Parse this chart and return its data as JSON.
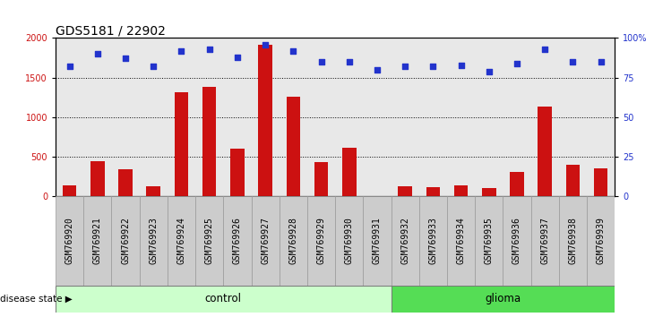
{
  "title": "GDS5181 / 22902",
  "samples": [
    "GSM769920",
    "GSM769921",
    "GSM769922",
    "GSM769923",
    "GSM769924",
    "GSM769925",
    "GSM769926",
    "GSM769927",
    "GSM769928",
    "GSM769929",
    "GSM769930",
    "GSM769931",
    "GSM769932",
    "GSM769933",
    "GSM769934",
    "GSM769935",
    "GSM769936",
    "GSM769937",
    "GSM769938",
    "GSM769939"
  ],
  "count_values": [
    140,
    450,
    350,
    130,
    1320,
    1380,
    600,
    1920,
    1260,
    430,
    620,
    5,
    130,
    115,
    145,
    105,
    305,
    1130,
    400,
    355
  ],
  "percentile_values": [
    82,
    90,
    87,
    82,
    92,
    93,
    88,
    96,
    92,
    85,
    85,
    80,
    82,
    82,
    83,
    79,
    84,
    93,
    85,
    85
  ],
  "control_count": 12,
  "glioma_count": 8,
  "bar_color": "#cc1111",
  "dot_color": "#2233cc",
  "control_bg": "#ccffcc",
  "glioma_bg": "#55dd55",
  "ylim_left": [
    0,
    2000
  ],
  "ylim_right": [
    0,
    100
  ],
  "yticks_left": [
    0,
    500,
    1000,
    1500,
    2000
  ],
  "yticks_right": [
    0,
    25,
    50,
    75,
    100
  ],
  "background_color": "#ffffff",
  "title_fontsize": 10,
  "tick_fontsize": 7,
  "legend_fontsize": 8
}
